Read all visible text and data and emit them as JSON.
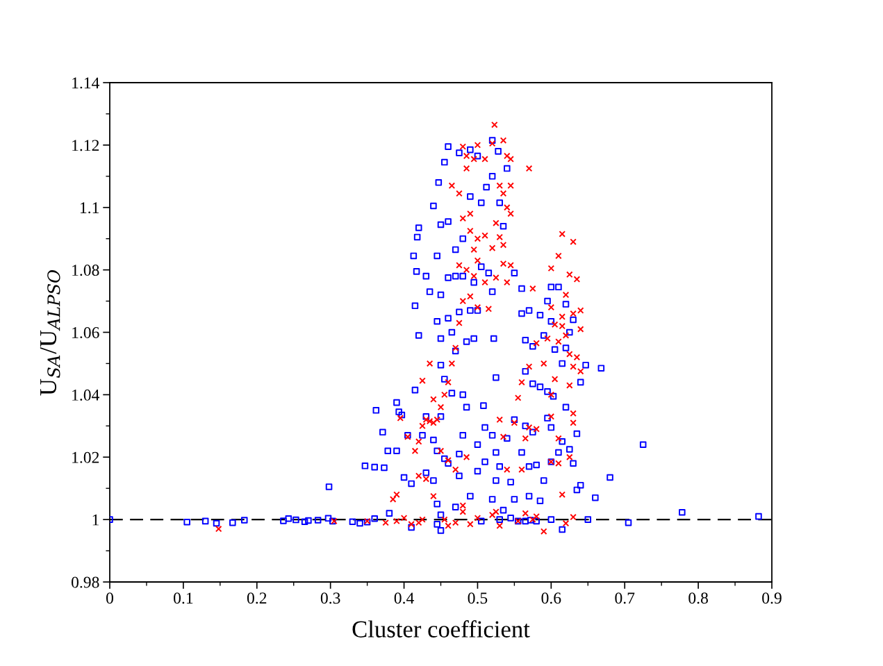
{
  "chart_data": {
    "type": "scatter",
    "xlabel": "Cluster coefficient",
    "ylabel": "U$_{SA}$/U$_{ALPSO}$",
    "xlim": [
      0,
      0.9
    ],
    "xticks": [
      0,
      0.1,
      0.2,
      0.3,
      0.4,
      0.5,
      0.6,
      0.7,
      0.8,
      0.9
    ],
    "ylim": [
      0.98,
      1.14
    ],
    "yticks": [
      0.98,
      1,
      1.02,
      1.04,
      1.06,
      1.08,
      1.1,
      1.12,
      1.14
    ],
    "grid": false,
    "ref_lines": [
      {
        "axis": "y",
        "value": 1,
        "color": "#000000",
        "line_style": "dashed"
      }
    ],
    "series": [
      {
        "color": "#0000ff",
        "marker": "square",
        "x": [
          0,
          0.105,
          0.13,
          0.145,
          0.167,
          0.183,
          0.236,
          0.243,
          0.253,
          0.265,
          0.27,
          0.283,
          0.297,
          0.303,
          0.33,
          0.34,
          0.35,
          0.36,
          0.298,
          0.347,
          0.36,
          0.373,
          0.371,
          0.362,
          0.39,
          0.393,
          0.397,
          0.378,
          0.39,
          0.38,
          0.4,
          0.41,
          0.405,
          0.41,
          0.415,
          0.42,
          0.415,
          0.417,
          0.413,
          0.418,
          0.42,
          0.43,
          0.44,
          0.445,
          0.447,
          0.455,
          0.46,
          0.475,
          0.49,
          0.5,
          0.52,
          0.528,
          0.54,
          0.45,
          0.46,
          0.47,
          0.48,
          0.49,
          0.505,
          0.512,
          0.52,
          0.53,
          0.435,
          0.45,
          0.46,
          0.47,
          0.48,
          0.495,
          0.505,
          0.515,
          0.52,
          0.535,
          0.445,
          0.46,
          0.475,
          0.49,
          0.5,
          0.45,
          0.465,
          0.485,
          0.495,
          0.522,
          0.45,
          0.47,
          0.48,
          0.455,
          0.465,
          0.525,
          0.44,
          0.45,
          0.43,
          0.425,
          0.445,
          0.455,
          0.46,
          0.475,
          0.48,
          0.485,
          0.5,
          0.508,
          0.51,
          0.52,
          0.525,
          0.53,
          0.54,
          0.43,
          0.44,
          0.445,
          0.45,
          0.47,
          0.475,
          0.49,
          0.5,
          0.51,
          0.52,
          0.525,
          0.535,
          0.545,
          0.55,
          0.45,
          0.445,
          0.505,
          0.53,
          0.545,
          0.555,
          0.58,
          0.6,
          0.615,
          0.55,
          0.56,
          0.56,
          0.565,
          0.57,
          0.575,
          0.585,
          0.59,
          0.595,
          0.6,
          0.61,
          0.62,
          0.63,
          0.6,
          0.605,
          0.615,
          0.62,
          0.625,
          0.565,
          0.575,
          0.585,
          0.595,
          0.603,
          0.62,
          0.64,
          0.647,
          0.668,
          0.55,
          0.565,
          0.575,
          0.595,
          0.6,
          0.615,
          0.625,
          0.635,
          0.56,
          0.57,
          0.58,
          0.59,
          0.6,
          0.61,
          0.63,
          0.57,
          0.585,
          0.635,
          0.64,
          0.66,
          0.68,
          0.725,
          0.65,
          0.705,
          0.778,
          0.882,
          0.565,
          0.572
        ],
        "values": [
          1.0,
          0.9992,
          0.9995,
          0.9988,
          0.999,
          0.9998,
          0.9996,
          1.0003,
          0.9999,
          0.9993,
          0.9997,
          0.9998,
          1.0004,
          0.9995,
          0.9993,
          0.9988,
          0.9992,
          1.0003,
          1.0105,
          1.0172,
          1.0168,
          1.0166,
          1.028,
          1.035,
          1.0375,
          1.0345,
          1.0335,
          1.022,
          1.022,
          1.002,
          1.0135,
          1.0115,
          1.027,
          0.9975,
          1.0415,
          1.059,
          1.0685,
          1.0795,
          1.0845,
          1.0905,
          1.0935,
          1.078,
          1.1005,
          1.0845,
          1.108,
          1.1145,
          1.1195,
          1.1175,
          1.1185,
          1.1165,
          1.1215,
          1.118,
          1.1125,
          1.0945,
          1.0955,
          1.0865,
          1.09,
          1.1035,
          1.1015,
          1.1065,
          1.11,
          1.1015,
          1.073,
          1.072,
          1.0775,
          1.078,
          1.078,
          1.076,
          1.081,
          1.079,
          1.073,
          1.094,
          1.0635,
          1.0645,
          1.0665,
          1.067,
          1.067,
          1.058,
          1.06,
          1.057,
          1.058,
          1.058,
          1.0495,
          1.054,
          1.04,
          1.045,
          1.0405,
          1.0455,
          1.0255,
          1.033,
          1.033,
          1.027,
          1.022,
          1.0195,
          1.018,
          1.021,
          1.027,
          1.036,
          1.024,
          1.0365,
          1.0295,
          1.027,
          1.0215,
          1.017,
          1.026,
          1.015,
          1.0125,
          1.005,
          1.0015,
          1.004,
          1.014,
          1.0075,
          1.0155,
          1.0185,
          1.0065,
          1.0125,
          1.003,
          1.012,
          1.0065,
          0.9965,
          0.9985,
          0.9995,
          1.0,
          1.0005,
          0.9995,
          0.9995,
          1.0,
          0.9968,
          1.079,
          1.074,
          1.066,
          1.0575,
          1.067,
          1.0555,
          1.0655,
          1.059,
          1.07,
          1.0745,
          1.0745,
          1.069,
          1.064,
          1.0635,
          1.0545,
          1.05,
          1.055,
          1.06,
          1.0475,
          1.0435,
          1.0425,
          1.041,
          1.0395,
          1.036,
          1.044,
          1.0495,
          1.0485,
          1.032,
          1.03,
          1.028,
          1.0325,
          1.0295,
          1.025,
          1.0225,
          1.0275,
          1.0215,
          1.017,
          1.0175,
          1.0125,
          1.0185,
          1.0215,
          1.018,
          1.0075,
          1.006,
          1.0095,
          1.011,
          1.007,
          1.0135,
          1.024,
          1.0,
          0.999,
          1.0023,
          1.001,
          0.9995,
          0.9998
        ]
      },
      {
        "color": "#ff0000",
        "marker": "cross",
        "x": [
          0.148,
          0.305,
          0.35,
          0.375,
          0.39,
          0.4,
          0.41,
          0.42,
          0.425,
          0.385,
          0.39,
          0.395,
          0.405,
          0.42,
          0.43,
          0.415,
          0.42,
          0.425,
          0.43,
          0.435,
          0.44,
          0.445,
          0.425,
          0.435,
          0.44,
          0.45,
          0.455,
          0.46,
          0.465,
          0.47,
          0.475,
          0.48,
          0.44,
          0.45,
          0.46,
          0.47,
          0.48,
          0.485,
          0.455,
          0.46,
          0.47,
          0.48,
          0.49,
          0.5,
          0.465,
          0.475,
          0.48,
          0.485,
          0.485,
          0.49,
          0.495,
          0.5,
          0.51,
          0.52,
          0.523,
          0.535,
          0.54,
          0.545,
          0.53,
          0.535,
          0.54,
          0.545,
          0.545,
          0.57,
          0.48,
          0.49,
          0.495,
          0.5,
          0.51,
          0.52,
          0.525,
          0.53,
          0.535,
          0.475,
          0.485,
          0.495,
          0.5,
          0.51,
          0.525,
          0.535,
          0.545,
          0.54,
          0.49,
          0.5,
          0.515,
          0.575,
          0.58,
          0.57,
          0.56,
          0.555,
          0.55,
          0.565,
          0.57,
          0.58,
          0.56,
          0.53,
          0.535,
          0.54,
          0.52,
          0.525,
          0.53,
          0.555,
          0.565,
          0.575,
          0.58,
          0.59,
          0.6,
          0.605,
          0.61,
          0.6,
          0.59,
          0.595,
          0.6,
          0.605,
          0.61,
          0.615,
          0.62,
          0.625,
          0.6,
          0.61,
          0.615,
          0.63,
          0.635,
          0.615,
          0.62,
          0.625,
          0.63,
          0.635,
          0.64,
          0.64,
          0.64,
          0.63,
          0.625,
          0.63,
          0.63,
          0.625,
          0.615,
          0.63,
          0.62,
          0.6,
          0.61
        ],
        "values": [
          0.997,
          0.9995,
          0.9995,
          0.999,
          0.9995,
          1.0005,
          0.9985,
          0.999,
          1.0,
          1.0065,
          1.008,
          1.0325,
          1.0265,
          1.014,
          1.013,
          1.022,
          1.025,
          1.03,
          1.032,
          1.0315,
          1.031,
          1.032,
          1.0445,
          1.05,
          1.0385,
          1.036,
          1.04,
          1.044,
          1.05,
          1.055,
          1.063,
          1.07,
          1.0075,
          1.022,
          1.019,
          1.016,
          1.0045,
          1.02,
          1.0,
          0.998,
          0.999,
          1.0025,
          0.9985,
          1.0005,
          1.107,
          1.1045,
          1.1195,
          1.1165,
          1.1125,
          1.098,
          1.1155,
          1.12,
          1.1155,
          1.1205,
          1.1265,
          1.1215,
          1.1165,
          1.1155,
          1.107,
          1.1045,
          1.1,
          1.098,
          1.107,
          1.1125,
          1.0965,
          1.0925,
          1.0865,
          1.09,
          1.091,
          1.087,
          1.095,
          1.0905,
          1.088,
          1.0815,
          1.08,
          1.078,
          1.083,
          1.076,
          1.0775,
          1.082,
          1.0815,
          1.076,
          1.0715,
          1.068,
          1.0675,
          1.074,
          1.0565,
          1.049,
          1.044,
          1.039,
          1.031,
          1.026,
          1.0295,
          1.029,
          1.016,
          1.032,
          1.0265,
          1.016,
          1.0015,
          1.0025,
          0.998,
          0.9995,
          1.002,
          1.0,
          1.001,
          0.9962,
          1.04,
          1.045,
          1.026,
          1.033,
          1.05,
          1.058,
          1.068,
          1.0625,
          1.057,
          1.065,
          1.072,
          1.0785,
          1.0805,
          1.0845,
          1.0915,
          1.089,
          1.077,
          1.062,
          1.059,
          1.053,
          1.049,
          1.052,
          1.0475,
          1.061,
          1.067,
          1.066,
          1.043,
          1.031,
          1.034,
          1.02,
          1.008,
          1.0008,
          0.9988,
          1.0185,
          1.018
        ]
      }
    ]
  }
}
